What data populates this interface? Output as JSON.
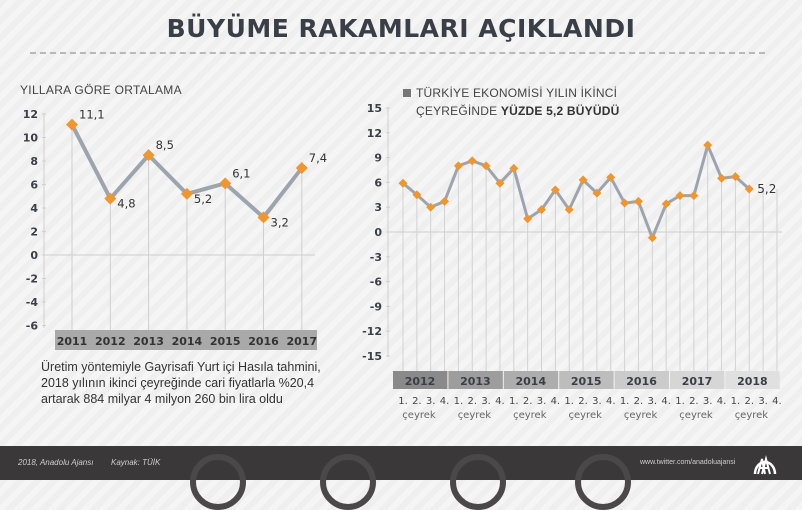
{
  "header": {
    "title": "BÜYÜME RAKAMLARI AÇIKLANDI"
  },
  "left_panel": {
    "title": "YILLARA GÖRE ORTALAMA",
    "description": "Üretim yöntemiyle Gayrisafi Yurt içi Hasıla tahmini, 2018 yılının ikinci çeyreğinde cari fiyatlarla %20,4 artarak 884 milyar 4 milyon 260 bin lira oldu"
  },
  "right_panel": {
    "legend_line1": "TÜRKİYE EKONOMİSİ YILIN İKİNCİ",
    "legend_line2_prefix": "ÇEYREĞİNDE ",
    "legend_line2_bold": "YÜZDE 5,2 BÜYÜDÜ",
    "quarter_label": "çeyrek",
    "quarter_ticks": [
      "1.",
      "2.",
      "3.",
      "4."
    ]
  },
  "footer": {
    "copyright": "2018, Anadolu Ajansı",
    "source": "Kaynak: TÜİK",
    "twitter": "www.twitter.com/anadoluajansi",
    "logo": "AA"
  },
  "colors": {
    "line": "#9ea4ad",
    "marker": "#f0962e",
    "axis_band_dark": "#8a8a8a",
    "text_dark": "#3a3f47",
    "footer_bg": "#3a3838"
  },
  "chart_data": [
    {
      "type": "line",
      "title": "YILLARA GÖRE ORTALAMA",
      "categories": [
        "2011",
        "2012",
        "2013",
        "2014",
        "2015",
        "2016",
        "2017"
      ],
      "values": [
        11.1,
        4.8,
        8.5,
        5.2,
        6.1,
        3.2,
        7.4
      ],
      "data_labels": [
        "11,1",
        "4,8",
        "8,5",
        "5,2",
        "6,1",
        "3,2",
        "7,4"
      ],
      "xlabel": "",
      "ylabel": "",
      "ylim": [
        -6,
        12
      ],
      "yticks": [
        12,
        10,
        8,
        6,
        4,
        2,
        0,
        -2,
        -4,
        -6
      ],
      "grid": false,
      "legend": "none"
    },
    {
      "type": "line",
      "title": "TÜRKİYE EKONOMİSİ YILIN İKİNCİ ÇEYREĞİNDE YÜZDE 5,2 BÜYÜDÜ",
      "years": [
        "2012",
        "2013",
        "2014",
        "2015",
        "2016",
        "2017",
        "2018"
      ],
      "x": [
        "2012 Q1",
        "2012 Q2",
        "2012 Q3",
        "2012 Q4",
        "2013 Q1",
        "2013 Q2",
        "2013 Q3",
        "2013 Q4",
        "2014 Q1",
        "2014 Q2",
        "2014 Q3",
        "2014 Q4",
        "2015 Q1",
        "2015 Q2",
        "2015 Q3",
        "2015 Q4",
        "2016 Q1",
        "2016 Q2",
        "2016 Q3",
        "2016 Q4",
        "2017 Q1",
        "2017 Q2",
        "2017 Q3",
        "2017 Q4",
        "2018 Q1",
        "2018 Q2"
      ],
      "values": [
        5.9,
        4.5,
        3.0,
        3.7,
        8.0,
        8.6,
        8.0,
        5.9,
        7.7,
        1.6,
        2.7,
        5.1,
        2.7,
        6.3,
        4.7,
        6.6,
        3.5,
        3.7,
        -0.7,
        3.4,
        4.4,
        4.4,
        10.5,
        6.5,
        6.7,
        5.2
      ],
      "data_labels": {
        "2018 Q2": "5,2"
      },
      "xlabel": "çeyrek",
      "ylabel": "",
      "ylim": [
        -15,
        15
      ],
      "yticks": [
        15,
        12,
        9,
        6,
        3,
        0,
        -3,
        -6,
        -9,
        -12,
        -15
      ],
      "grid": false,
      "legend": "top"
    }
  ]
}
